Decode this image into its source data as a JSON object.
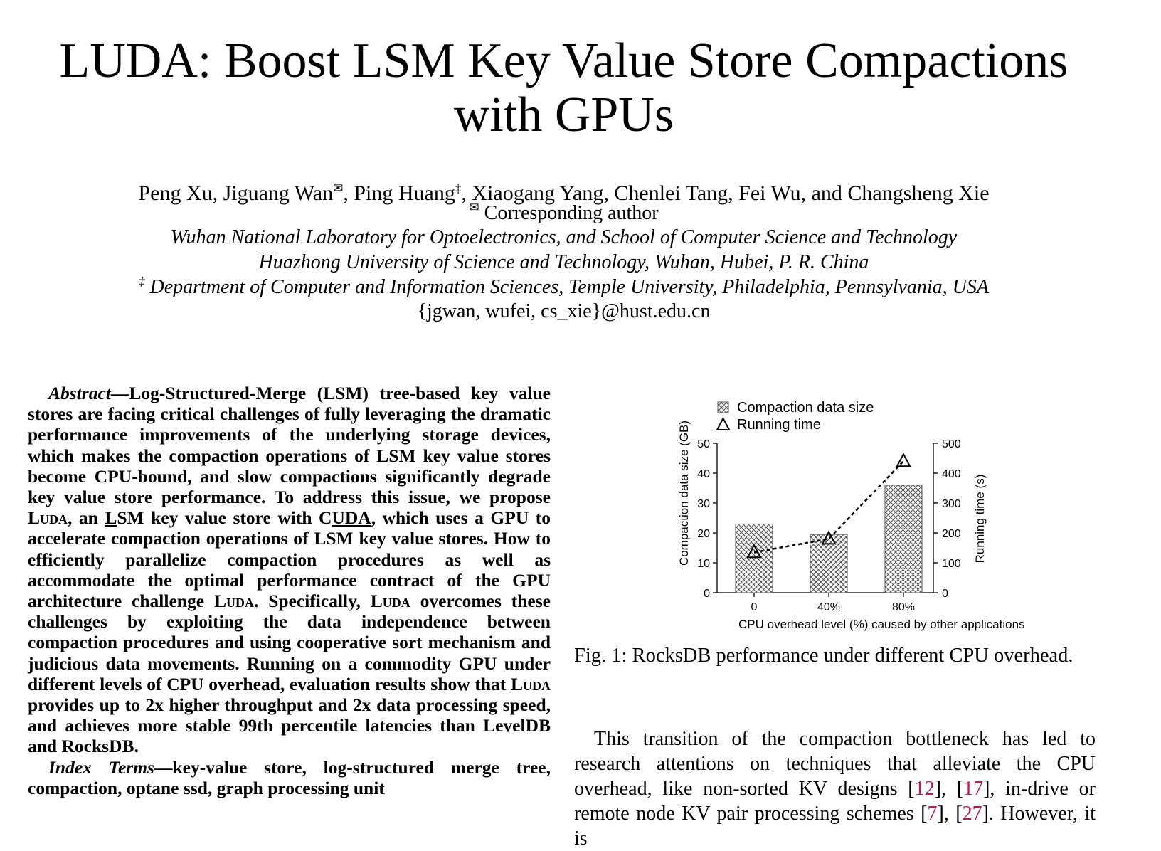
{
  "title": {
    "line1": "LUDA: Boost LSM Key Value Store Compactions",
    "line2": "with GPUs"
  },
  "authors": {
    "part1": "Peng Xu, Jiguang Wan",
    "mark1": "✉",
    "part2": ", Ping Huang",
    "mark2": "‡",
    "part3": ", Xiaogang Yang, Chenlei Tang, Fei Wu, and Changsheng Xie"
  },
  "affiliations": {
    "corresponding_mark": "✉",
    "corresponding": " Corresponding author",
    "line1": "Wuhan National Laboratory for Optoelectronics, and School of Computer Science and Technology",
    "line2": "Huazhong University of Science and Technology, Wuhan, Hubei, P. R. China",
    "line3_mark": "‡",
    "line3": " Department of Computer and Information Sciences, Temple University, Philadelphia, Pennsylvania, USA",
    "email": "{jgwan, wufei, cs_xie}@hust.edu.cn"
  },
  "abstract": {
    "label": "Abstract",
    "text1": "—Log-Structured-Merge (LSM) tree-based key value stores are facing critical challenges of fully leveraging the dramatic performance improvements of the underlying storage devices, which makes the compaction operations of LSM key value stores become CPU-bound, and slow compactions significantly degrade key value store performance. To address this issue, we propose ",
    "luda1": "Luda",
    "text2": ", an ",
    "l_letter": "L",
    "text3": "SM key value store with C",
    "uda": "UDA",
    "text4": ", which uses a GPU to accelerate compaction operations of LSM key value stores. How to efficiently parallelize compaction procedures as well as accommodate the optimal performance contract of the GPU architecture challenge ",
    "luda2": "Luda",
    "text5": ". Specifically, ",
    "luda3": "Luda",
    "text6": " overcomes these challenges by exploiting the data independence between compaction procedures and using cooperative sort mechanism and judicious data movements. Running on a commodity GPU under different levels of CPU overhead, evaluation results show that ",
    "luda4": "Luda",
    "text7": " provides up to 2x higher throughput and 2x data processing speed, and achieves more stable 99th percentile latencies than LevelDB and RocksDB."
  },
  "index_terms": {
    "label": "Index Terms",
    "text": "—key-value store, log-structured merge tree, compaction, optane ssd, graph processing unit"
  },
  "chart_data": {
    "type": "bar",
    "categories": [
      "0",
      "40%",
      "80%"
    ],
    "series": [
      {
        "name": "Compaction data size",
        "kind": "bar",
        "axis": "left",
        "values": [
          23,
          19.5,
          36
        ]
      },
      {
        "name": "Running time",
        "kind": "line",
        "axis": "right",
        "values": [
          135,
          180,
          440
        ]
      }
    ],
    "xlabel": "CPU overhead level (%) caused by other applications",
    "ylabel_left": "Compaction data size (GB)",
    "ylabel_right": "Running time (s)",
    "ylim_left": [
      0,
      50
    ],
    "ylim_right": [
      0,
      500
    ],
    "yticks_left": [
      "0",
      "10",
      "20",
      "30",
      "40",
      "50"
    ],
    "yticks_right": [
      "0",
      "100",
      "200",
      "300",
      "400",
      "500"
    ],
    "legend_position": "top-left",
    "grid": false,
    "colors": {
      "bar_hatch": "#555555",
      "bar_fill": "#ffffff",
      "line": "#000000"
    }
  },
  "figure_caption": "Fig. 1: RocksDB performance under different CPU overhead.",
  "body": {
    "t1": "This transition of the compaction bottleneck has led to research attentions on techniques that alleviate the CPU overhead, like non-sorted KV designs [",
    "r1": "12",
    "t2": "], [",
    "r2": "17",
    "t3": "], in-drive or remote node KV pair processing schemes [",
    "r3": "7",
    "t4": "], [",
    "r4": "27",
    "t5": "]. However, it is"
  }
}
